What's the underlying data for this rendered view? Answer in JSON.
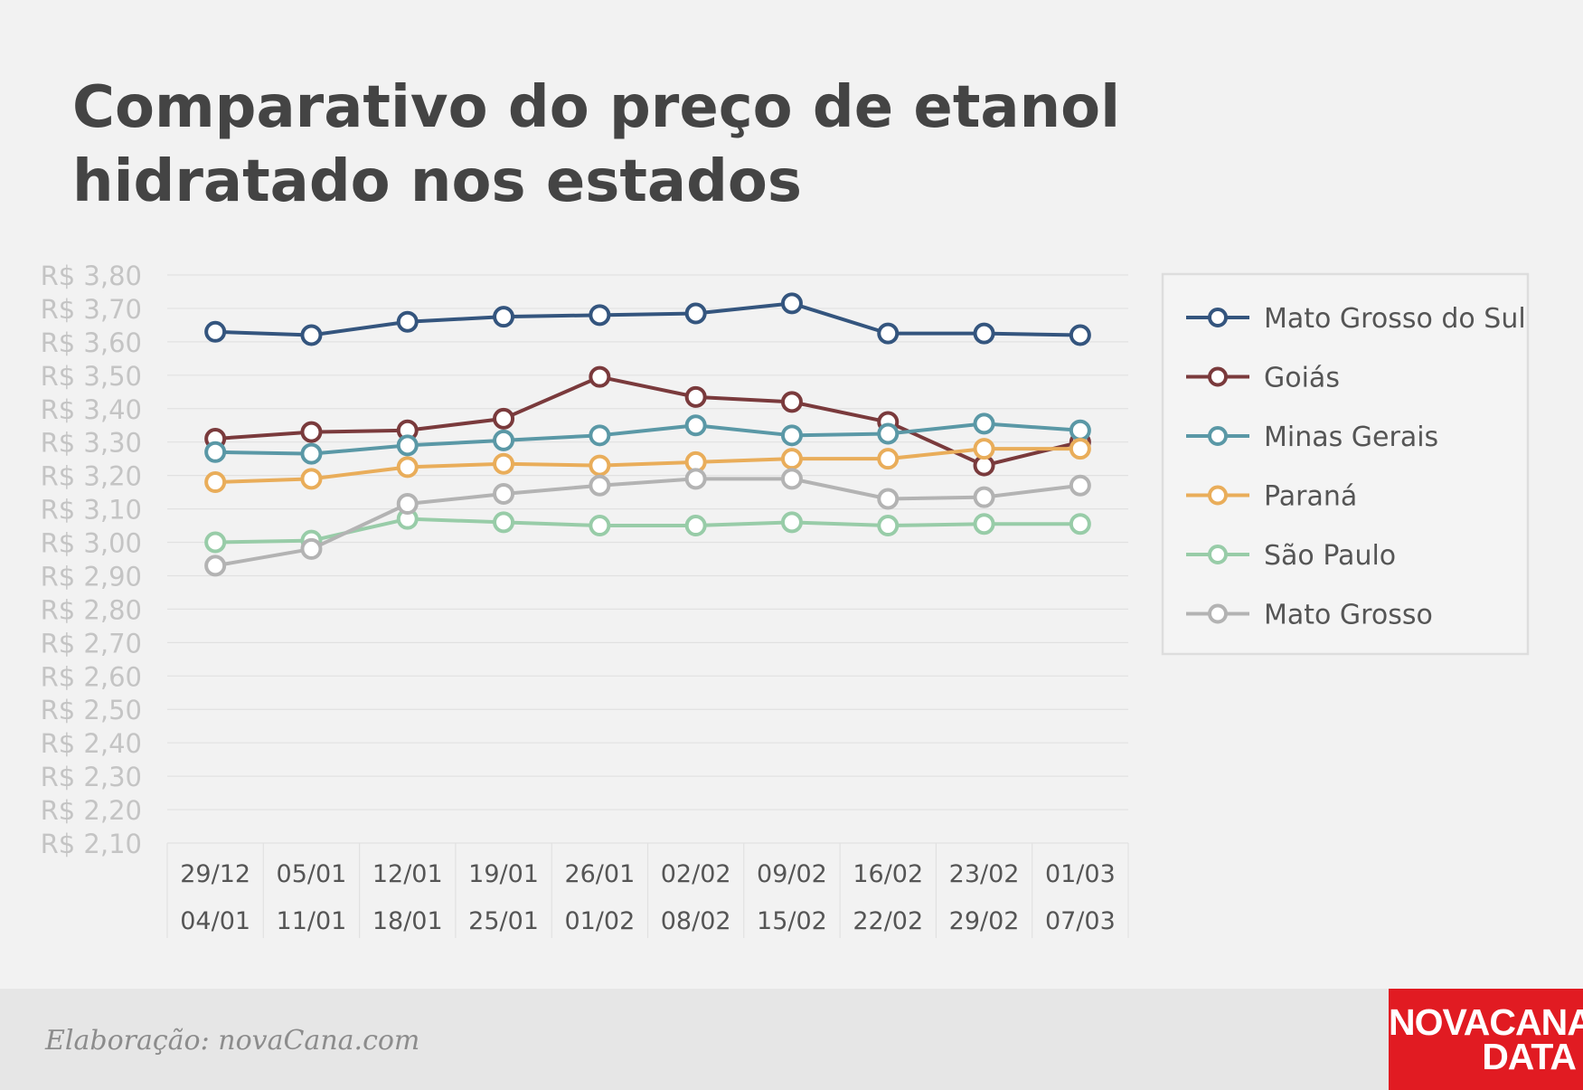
{
  "title": "Comparativo do preço de etanol hidratado nos estados",
  "footer": {
    "credit": "Elaboração: novaCana.com",
    "logo_line1": "NOVACANA",
    "logo_line2": "DATA"
  },
  "chart_data": {
    "type": "line",
    "title": "Comparativo do preço de etanol hidratado nos estados",
    "xlabel": "",
    "ylabel": "",
    "ylim": [
      2.1,
      3.8
    ],
    "y_step": 0.1,
    "y_tick_prefix": "R$ ",
    "grid": true,
    "legend_position": "right",
    "categories": [
      [
        "29/12",
        "04/01"
      ],
      [
        "05/01",
        "11/01"
      ],
      [
        "12/01",
        "18/01"
      ],
      [
        "19/01",
        "25/01"
      ],
      [
        "26/01",
        "01/02"
      ],
      [
        "02/02",
        "08/02"
      ],
      [
        "09/02",
        "15/02"
      ],
      [
        "16/02",
        "22/02"
      ],
      [
        "23/02",
        "29/02"
      ],
      [
        "01/03",
        "07/03"
      ]
    ],
    "series": [
      {
        "name": "Mato Grosso do Sul",
        "color": "#34557e",
        "values": [
          3.63,
          3.62,
          3.66,
          3.675,
          3.68,
          3.685,
          3.715,
          3.625,
          3.625,
          3.62
        ]
      },
      {
        "name": "Goiás",
        "color": "#7a3a3c",
        "values": [
          3.31,
          3.33,
          3.335,
          3.37,
          3.495,
          3.435,
          3.42,
          3.36,
          3.23,
          3.3
        ]
      },
      {
        "name": "Minas Gerais",
        "color": "#5a98a6",
        "values": [
          3.27,
          3.265,
          3.29,
          3.305,
          3.32,
          3.35,
          3.32,
          3.325,
          3.355,
          3.335
        ]
      },
      {
        "name": "Paraná",
        "color": "#e9ad5a",
        "values": [
          3.18,
          3.19,
          3.225,
          3.235,
          3.23,
          3.24,
          3.25,
          3.25,
          3.28,
          3.28
        ]
      },
      {
        "name": "São Paulo",
        "color": "#98cca8",
        "values": [
          3.0,
          3.005,
          3.07,
          3.06,
          3.05,
          3.05,
          3.06,
          3.05,
          3.055,
          3.055
        ]
      },
      {
        "name": "Mato Grosso",
        "color": "#b3b3b3",
        "values": [
          2.93,
          2.98,
          3.115,
          3.145,
          3.17,
          3.19,
          3.19,
          3.13,
          3.135,
          3.17
        ]
      }
    ]
  }
}
